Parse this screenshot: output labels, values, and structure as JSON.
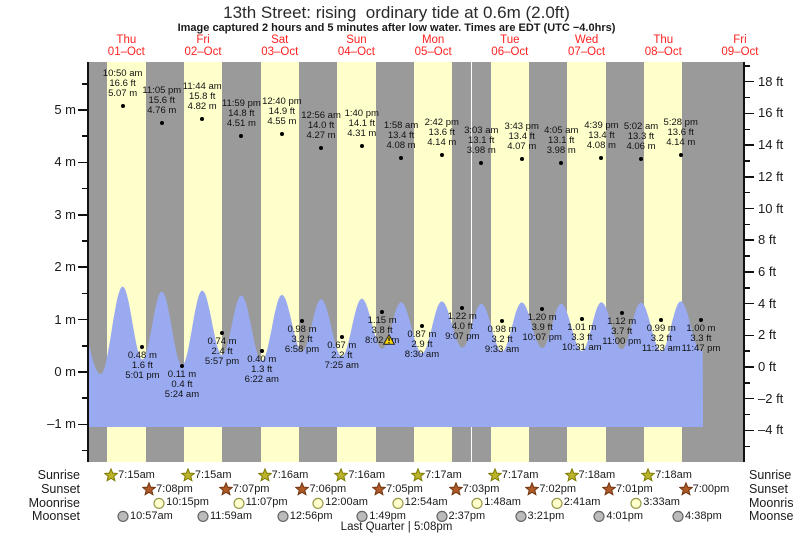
{
  "title": "13th Street: rising  ordinary tide at 0.6m (2.0ft)",
  "subtitle": "Image captured 2 hours and 5 minutes after low water. Times are EDT (UTC −4.0hrs)",
  "colors": {
    "stripe_night": "#9a9a9a",
    "stripe_day": "#ffffcc",
    "tide_fill": "#99aaf0",
    "day_label_red": "#ff2222",
    "sunrise_star_fill": "#b9b42c",
    "sunrise_star_stroke": "#7f7a00",
    "sunset_star_fill": "#b05a28",
    "sunset_star_stroke": "#6e3510",
    "moonrise_fill": "#ffffcc",
    "moonrise_stroke": "#99994d",
    "moonset_fill": "#bbbbbb",
    "moonset_stroke": "#666666",
    "warning_fill": "#ffd800",
    "warning_stroke": "#222222"
  },
  "chart_data": {
    "type": "area",
    "x_axis": {
      "days": [
        {
          "weekday": "Thu",
          "date": "01–Oct"
        },
        {
          "weekday": "Fri",
          "date": "02–Oct"
        },
        {
          "weekday": "Sat",
          "date": "03–Oct"
        },
        {
          "weekday": "Sun",
          "date": "04–Oct"
        },
        {
          "weekday": "Mon",
          "date": "05–Oct"
        },
        {
          "weekday": "Tue",
          "date": "06–Oct"
        },
        {
          "weekday": "Wed",
          "date": "07–Oct"
        },
        {
          "weekday": "Thu",
          "date": "08–Oct"
        },
        {
          "weekday": "Fri",
          "date": "09–Oct"
        }
      ]
    },
    "y_axis_left_m": {
      "unit": "m",
      "majors": [
        {
          "v": 5,
          "label": "5 m"
        },
        {
          "v": 4,
          "label": "4 m"
        },
        {
          "v": 3,
          "label": "3 m"
        },
        {
          "v": 2,
          "label": "2 m"
        },
        {
          "v": 1,
          "label": "1 m"
        },
        {
          "v": 0,
          "label": "0 m"
        },
        {
          "v": -1,
          "label": "–1 m"
        }
      ],
      "minors": [
        5.5,
        4.5,
        3.5,
        2.5,
        1.5,
        0.5,
        -0.5,
        -1.5
      ]
    },
    "y_axis_right_ft": {
      "unit": "ft",
      "majors": [
        {
          "v": 18,
          "label": "18 ft"
        },
        {
          "v": 16,
          "label": "16 ft"
        },
        {
          "v": 14,
          "label": "14 ft"
        },
        {
          "v": 12,
          "label": "12 ft"
        },
        {
          "v": 10,
          "label": "10 ft"
        },
        {
          "v": 8,
          "label": "8 ft"
        },
        {
          "v": 6,
          "label": "6 ft"
        },
        {
          "v": 4,
          "label": "4 ft"
        },
        {
          "v": 2,
          "label": "2 ft"
        },
        {
          "v": 0,
          "label": "0 ft"
        },
        {
          "v": -2,
          "label": "–2 ft"
        },
        {
          "v": -4,
          "label": "–4 ft"
        }
      ],
      "minors": [
        19,
        17,
        15,
        13,
        11,
        9,
        7,
        5,
        3,
        1,
        -1,
        -3,
        -5
      ]
    },
    "tide_events": [
      {
        "kind": "high",
        "day": 0,
        "time": "10:50 am",
        "ft": "16.6 ft",
        "m": "5.07 m",
        "value_m": 5.07
      },
      {
        "kind": "low",
        "day": 0,
        "time": "5:01 pm",
        "ft": "1.6 ft",
        "m": "0.48 m",
        "value_m": 0.48
      },
      {
        "kind": "high",
        "day": 0,
        "time": "11:05 pm",
        "ft": "15.6 ft",
        "m": "4.76 m",
        "value_m": 4.76
      },
      {
        "kind": "low",
        "day": 1,
        "time": "5:24 am",
        "ft": "0.4 ft",
        "m": "0.11 m",
        "value_m": 0.11
      },
      {
        "kind": "high",
        "day": 1,
        "time": "11:44 am",
        "ft": "15.8 ft",
        "m": "4.82 m",
        "value_m": 4.82
      },
      {
        "kind": "low",
        "day": 1,
        "time": "5:57 pm",
        "ft": "2.4 ft",
        "m": "0.74 m",
        "value_m": 0.74
      },
      {
        "kind": "high",
        "day": 1,
        "time": "11:59 pm",
        "ft": "14.8 ft",
        "m": "4.51 m",
        "value_m": 4.51
      },
      {
        "kind": "low",
        "day": 2,
        "time": "6:22 am",
        "ft": "1.3 ft",
        "m": "0.40 m",
        "value_m": 0.4
      },
      {
        "kind": "high",
        "day": 2,
        "time": "12:40 pm",
        "ft": "14.9 ft",
        "m": "4.55 m",
        "value_m": 4.55
      },
      {
        "kind": "low",
        "day": 2,
        "time": "6:58 pm",
        "ft": "3.2 ft",
        "m": "0.98 m",
        "value_m": 0.98
      },
      {
        "kind": "high",
        "day": 3,
        "time": "12:56 am",
        "ft": "14.0 ft",
        "m": "4.27 m",
        "value_m": 4.27
      },
      {
        "kind": "low",
        "day": 3,
        "time": "7:25 am",
        "ft": "2.2 ft",
        "m": "0.67 m",
        "value_m": 0.67
      },
      {
        "kind": "high",
        "day": 3,
        "time": "1:40 pm",
        "ft": "14.1 ft",
        "m": "4.31 m",
        "value_m": 4.31
      },
      {
        "kind": "low",
        "day": 3,
        "time": "8:02 pm",
        "ft": "3.8 ft",
        "m": "1.15 m",
        "value_m": 1.15,
        "warning": true
      },
      {
        "kind": "high",
        "day": 4,
        "time": "1:58 am",
        "ft": "13.4 ft",
        "m": "4.08 m",
        "value_m": 4.08
      },
      {
        "kind": "low",
        "day": 4,
        "time": "8:30 am",
        "ft": "2.9 ft",
        "m": "0.87 m",
        "value_m": 0.87
      },
      {
        "kind": "high",
        "day": 4,
        "time": "2:42 pm",
        "ft": "13.6 ft",
        "m": "4.14 m",
        "value_m": 4.14
      },
      {
        "kind": "low",
        "day": 4,
        "time": "9:07 pm",
        "ft": "4.0 ft",
        "m": "1.22 m",
        "value_m": 1.22
      },
      {
        "kind": "high",
        "day": 5,
        "time": "3:03 am",
        "ft": "13.1 ft",
        "m": "3.98 m",
        "value_m": 3.98
      },
      {
        "kind": "low",
        "day": 5,
        "time": "9:33 am",
        "ft": "3.2 ft",
        "m": "0.98 m",
        "value_m": 0.98
      },
      {
        "kind": "high",
        "day": 5,
        "time": "3:43 pm",
        "ft": "13.4 ft",
        "m": "4.07 m",
        "value_m": 4.07
      },
      {
        "kind": "low",
        "day": 5,
        "time": "10:07 pm",
        "ft": "3.9 ft",
        "m": "1.20 m",
        "value_m": 1.2
      },
      {
        "kind": "high",
        "day": 6,
        "time": "4:05 am",
        "ft": "13.1 ft",
        "m": "3.98 m",
        "value_m": 3.98
      },
      {
        "kind": "low",
        "day": 6,
        "time": "10:31 am",
        "ft": "3.3 ft",
        "m": "1.01 m",
        "value_m": 1.01
      },
      {
        "kind": "high",
        "day": 6,
        "time": "4:39 pm",
        "ft": "13.4 ft",
        "m": "4.08 m",
        "value_m": 4.08
      },
      {
        "kind": "low",
        "day": 6,
        "time": "11:00 pm",
        "ft": "3.7 ft",
        "m": "1.12 m",
        "value_m": 1.12
      },
      {
        "kind": "high",
        "day": 7,
        "time": "5:02 am",
        "ft": "13.3 ft",
        "m": "4.06 m",
        "value_m": 4.06
      },
      {
        "kind": "low",
        "day": 7,
        "time": "11:23 am",
        "ft": "3.2 ft",
        "m": "0.99 m",
        "value_m": 0.99
      },
      {
        "kind": "high",
        "day": 7,
        "time": "5:28 pm",
        "ft": "13.6 ft",
        "m": "4.14 m",
        "value_m": 4.14
      },
      {
        "kind": "low",
        "day": 7,
        "time": "11:47 pm",
        "ft": "3.3 ft",
        "m": "1.00 m",
        "value_m": 1.0
      }
    ],
    "curve_anchors_unlabeled": [
      {
        "t_days": -0.2,
        "value": 4.5
      },
      {
        "t_days": 0.165,
        "value": -0.45
      },
      {
        "t_days": 8.25,
        "value": 4.0
      }
    ],
    "curve_end_days": 8.02,
    "astro": {
      "rows": [
        {
          "label": "Sunrise",
          "icon": "sunrise-star-icon",
          "entries": [
            {
              "d": 0,
              "t": "7:15am"
            },
            {
              "d": 1,
              "t": "7:15am"
            },
            {
              "d": 2,
              "t": "7:16am"
            },
            {
              "d": 3,
              "t": "7:16am"
            },
            {
              "d": 4,
              "t": "7:17am"
            },
            {
              "d": 5,
              "t": "7:17am"
            },
            {
              "d": 6,
              "t": "7:18am"
            },
            {
              "d": 7,
              "t": "7:18am"
            }
          ]
        },
        {
          "label": "Sunset",
          "icon": "sunset-star-icon",
          "entries": [
            {
              "d": 0,
              "t": "7:08pm"
            },
            {
              "d": 1,
              "t": "7:07pm"
            },
            {
              "d": 2,
              "t": "7:06pm"
            },
            {
              "d": 3,
              "t": "7:05pm"
            },
            {
              "d": 4,
              "t": "7:03pm"
            },
            {
              "d": 5,
              "t": "7:02pm"
            },
            {
              "d": 6,
              "t": "7:01pm"
            },
            {
              "d": 7,
              "t": "7:00pm"
            }
          ]
        },
        {
          "label": "Moonrise",
          "icon": "moonrise-circle-icon",
          "entries": [
            {
              "d": 0,
              "t": "10:15pm"
            },
            {
              "d": 1,
              "t": "11:07pm"
            },
            {
              "d": 3,
              "t": "12:00am"
            },
            {
              "d": 4,
              "t": "12:54am"
            },
            {
              "d": 5,
              "t": "1:48am"
            },
            {
              "d": 6,
              "t": "2:41am"
            },
            {
              "d": 7,
              "t": "3:33am"
            }
          ]
        },
        {
          "label": "Moonset",
          "icon": "moonset-circle-icon",
          "entries": [
            {
              "d": 0,
              "t": "10:57am"
            },
            {
              "d": 1,
              "t": "11:59am"
            },
            {
              "d": 2,
              "t": "12:56pm"
            },
            {
              "d": 3,
              "t": "1:49pm"
            },
            {
              "d": 4,
              "t": "2:37pm"
            },
            {
              "d": 5,
              "t": "3:21pm"
            },
            {
              "d": 6,
              "t": "4:01pm"
            },
            {
              "d": 7,
              "t": "4:38pm"
            }
          ]
        }
      ]
    },
    "moon_phase": "Last Quarter | 5:08pm"
  }
}
